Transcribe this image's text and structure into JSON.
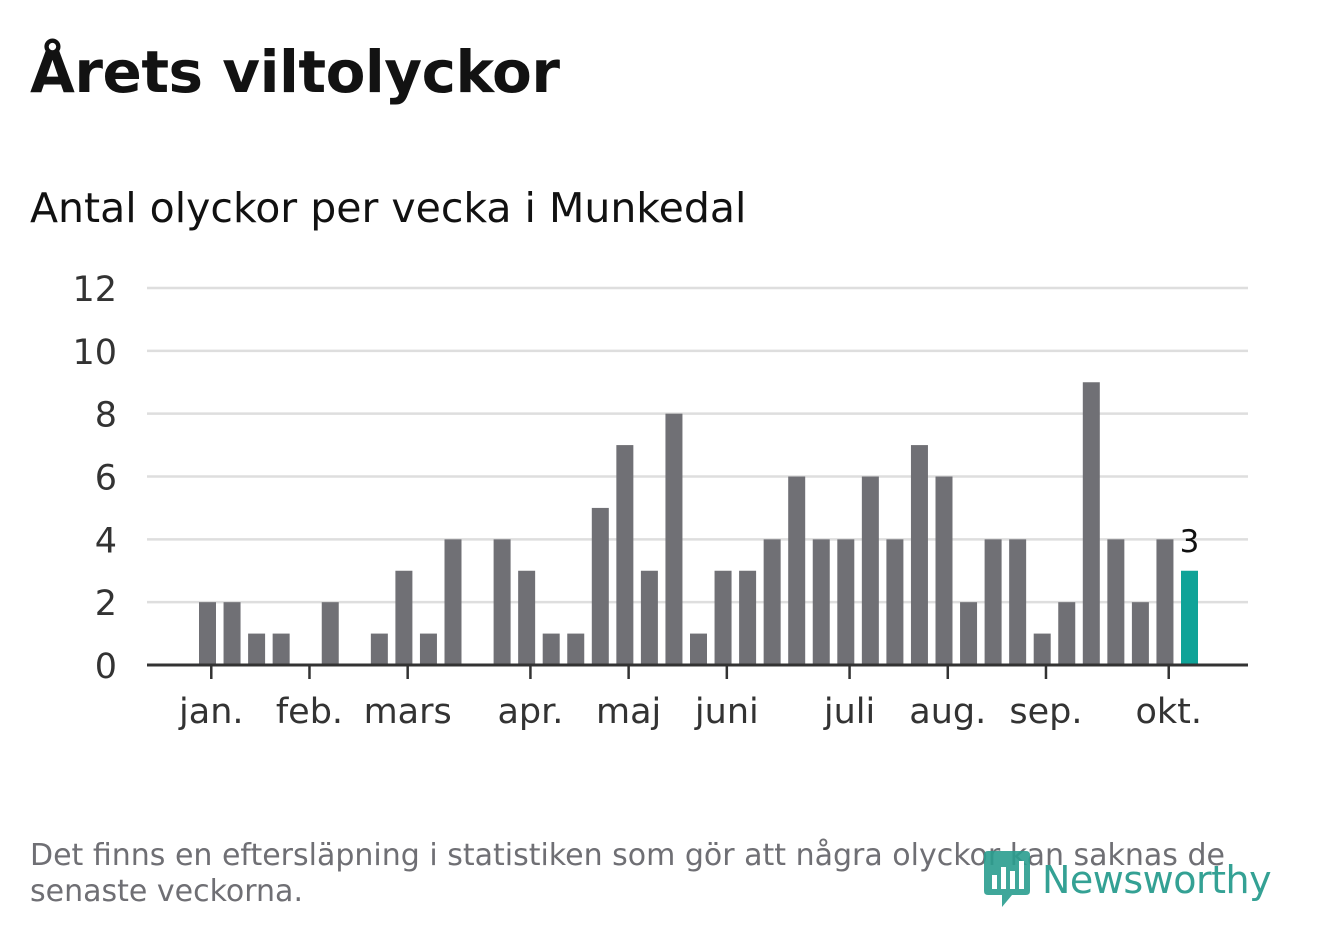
{
  "header": {
    "title": "Årets viltolyckor",
    "subtitle": "Antal olyckor per vecka i Munkedal"
  },
  "chart_data": {
    "type": "bar",
    "title": "Årets viltolyckor",
    "subtitle": "Antal olyckor per vecka i Munkedal",
    "xlabel": "",
    "ylabel": "",
    "ylim": [
      0,
      12
    ],
    "yticks": [
      0,
      2,
      4,
      6,
      8,
      10,
      12
    ],
    "grid": true,
    "weeks": [
      1,
      2,
      3,
      4,
      5,
      6,
      7,
      8,
      9,
      10,
      11,
      12,
      13,
      14,
      15,
      16,
      17,
      18,
      19,
      20,
      21,
      22,
      23,
      24,
      25,
      26,
      27,
      28,
      29,
      30,
      31,
      32,
      33,
      34,
      35,
      36,
      37,
      38,
      39,
      40,
      41,
      42
    ],
    "values": [
      2,
      2,
      1,
      1,
      0,
      2,
      0,
      1,
      3,
      1,
      4,
      0,
      4,
      3,
      1,
      1,
      5,
      7,
      3,
      8,
      1,
      3,
      3,
      4,
      6,
      4,
      4,
      6,
      4,
      7,
      6,
      2,
      4,
      4,
      1,
      2,
      9,
      4,
      2,
      4,
      3,
      0
    ],
    "highlight_index": 40,
    "highlight_label": "3",
    "month_ticks": [
      {
        "label": "jan.",
        "at": 0.5
      },
      {
        "label": "feb.",
        "at": 4.5
      },
      {
        "label": "mars",
        "at": 8.5
      },
      {
        "label": "apr.",
        "at": 13.5
      },
      {
        "label": "maj",
        "at": 17.5
      },
      {
        "label": "juni",
        "at": 21.5
      },
      {
        "label": "juli",
        "at": 26.5
      },
      {
        "label": "aug.",
        "at": 30.5
      },
      {
        "label": "sep.",
        "at": 34.5
      },
      {
        "label": "okt.",
        "at": 39.5
      }
    ],
    "colors": {
      "bar": "#707075",
      "highlight": "#0fa398",
      "grid": "#dedede",
      "axis": "#333333",
      "tick_text": "#333333"
    }
  },
  "footer": {
    "note": "Det finns en eftersläpning i statistiken som gör att några olyckor kan saknas de senaste veckorna.",
    "brand": "Newsworthy",
    "brand_icon": "newsworthy-logo-icon",
    "brand_color": "#2a9d8f"
  }
}
